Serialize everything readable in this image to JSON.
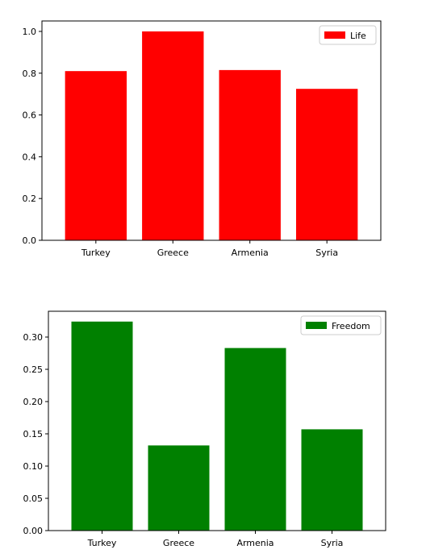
{
  "chart_data": [
    {
      "type": "bar",
      "categories": [
        "Turkey",
        "Greece",
        "Armenia",
        "Syria"
      ],
      "series": [
        {
          "name": "Life",
          "values": [
            0.81,
            1.0,
            0.815,
            0.725
          ],
          "color": "#ff0000"
        }
      ],
      "ylim": [
        0,
        1.05
      ],
      "yticks": [
        0.0,
        0.2,
        0.4,
        0.6,
        0.8,
        1.0
      ],
      "ytick_labels": [
        "0.0",
        "0.2",
        "0.4",
        "0.6",
        "0.8",
        "1.0"
      ],
      "legend_position": "upper-right",
      "grid": false,
      "title": "",
      "xlabel": "",
      "ylabel": ""
    },
    {
      "type": "bar",
      "categories": [
        "Turkey",
        "Greece",
        "Armenia",
        "Syria"
      ],
      "series": [
        {
          "name": "Freedom",
          "values": [
            0.324,
            0.132,
            0.283,
            0.157
          ],
          "color": "#008000"
        }
      ],
      "ylim": [
        0,
        0.34
      ],
      "yticks": [
        0.0,
        0.05,
        0.1,
        0.15,
        0.2,
        0.25,
        0.3
      ],
      "ytick_labels": [
        "0.00",
        "0.05",
        "0.10",
        "0.15",
        "0.20",
        "0.25",
        "0.30"
      ],
      "legend_position": "upper-right",
      "grid": false,
      "title": "",
      "xlabel": "",
      "ylabel": ""
    }
  ]
}
